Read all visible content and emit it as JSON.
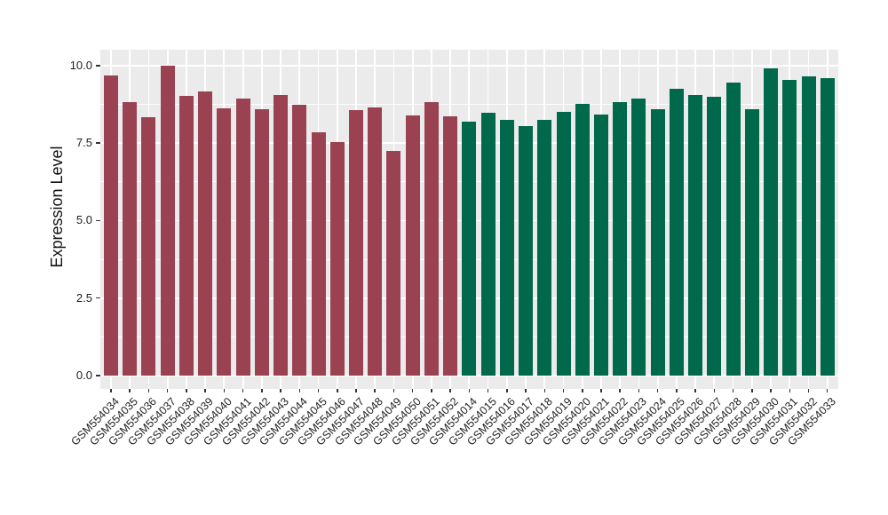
{
  "figure": {
    "background": "#FFFFFF"
  },
  "chart_data": {
    "type": "bar",
    "title": "",
    "xlabel": "",
    "ylabel": "Expression Level",
    "ylim": [
      0,
      10.5
    ],
    "ytick_values": [
      0,
      2.5,
      5,
      7.5,
      10
    ],
    "ytick_labels": [
      "0.0",
      "2.5",
      "5.0",
      "7.5",
      "10.0"
    ],
    "minor_ytick_values": [
      1.25,
      3.75,
      6.25,
      8.75
    ],
    "legend_position": "none",
    "panel_background": "#EBEBEB",
    "gridline_color": "#FFFFFF",
    "tick_color": "#333333",
    "group_colors": {
      "group1": "#9A4252",
      "group2": "#00684B"
    },
    "bars": [
      {
        "label": "GSM554034",
        "value": 9.68,
        "group": "group1"
      },
      {
        "label": "GSM554035",
        "value": 8.83,
        "group": "group1"
      },
      {
        "label": "GSM554036",
        "value": 8.34,
        "group": "group1"
      },
      {
        "label": "GSM554037",
        "value": 9.98,
        "group": "group1"
      },
      {
        "label": "GSM554038",
        "value": 9.03,
        "group": "group1"
      },
      {
        "label": "GSM554039",
        "value": 9.16,
        "group": "group1"
      },
      {
        "label": "GSM554040",
        "value": 8.63,
        "group": "group1"
      },
      {
        "label": "GSM554041",
        "value": 8.94,
        "group": "group1"
      },
      {
        "label": "GSM554042",
        "value": 8.58,
        "group": "group1"
      },
      {
        "label": "GSM554043",
        "value": 9.06,
        "group": "group1"
      },
      {
        "label": "GSM554044",
        "value": 8.72,
        "group": "group1"
      },
      {
        "label": "GSM554045",
        "value": 7.84,
        "group": "group1"
      },
      {
        "label": "GSM554046",
        "value": 7.52,
        "group": "group1"
      },
      {
        "label": "GSM554047",
        "value": 8.55,
        "group": "group1"
      },
      {
        "label": "GSM554048",
        "value": 8.66,
        "group": "group1"
      },
      {
        "label": "GSM554049",
        "value": 7.24,
        "group": "group1"
      },
      {
        "label": "GSM554050",
        "value": 8.4,
        "group": "group1"
      },
      {
        "label": "GSM554051",
        "value": 8.83,
        "group": "group1"
      },
      {
        "label": "GSM554052",
        "value": 8.37,
        "group": "group1"
      },
      {
        "label": "GSM554014",
        "value": 8.18,
        "group": "group2"
      },
      {
        "label": "GSM554015",
        "value": 8.48,
        "group": "group2"
      },
      {
        "label": "GSM554016",
        "value": 8.26,
        "group": "group2"
      },
      {
        "label": "GSM554017",
        "value": 8.04,
        "group": "group2"
      },
      {
        "label": "GSM554018",
        "value": 8.24,
        "group": "group2"
      },
      {
        "label": "GSM554019",
        "value": 8.51,
        "group": "group2"
      },
      {
        "label": "GSM554020",
        "value": 8.75,
        "group": "group2"
      },
      {
        "label": "GSM554021",
        "value": 8.42,
        "group": "group2"
      },
      {
        "label": "GSM554022",
        "value": 8.81,
        "group": "group2"
      },
      {
        "label": "GSM554023",
        "value": 8.93,
        "group": "group2"
      },
      {
        "label": "GSM554024",
        "value": 8.6,
        "group": "group2"
      },
      {
        "label": "GSM554025",
        "value": 9.25,
        "group": "group2"
      },
      {
        "label": "GSM554026",
        "value": 9.06,
        "group": "group2"
      },
      {
        "label": "GSM554027",
        "value": 8.99,
        "group": "group2"
      },
      {
        "label": "GSM554028",
        "value": 9.45,
        "group": "group2"
      },
      {
        "label": "GSM554029",
        "value": 8.58,
        "group": "group2"
      },
      {
        "label": "GSM554030",
        "value": 9.91,
        "group": "group2"
      },
      {
        "label": "GSM554031",
        "value": 9.54,
        "group": "group2"
      },
      {
        "label": "GSM554032",
        "value": 9.66,
        "group": "group2"
      },
      {
        "label": "GSM554033",
        "value": 9.59,
        "group": "group2"
      }
    ]
  }
}
